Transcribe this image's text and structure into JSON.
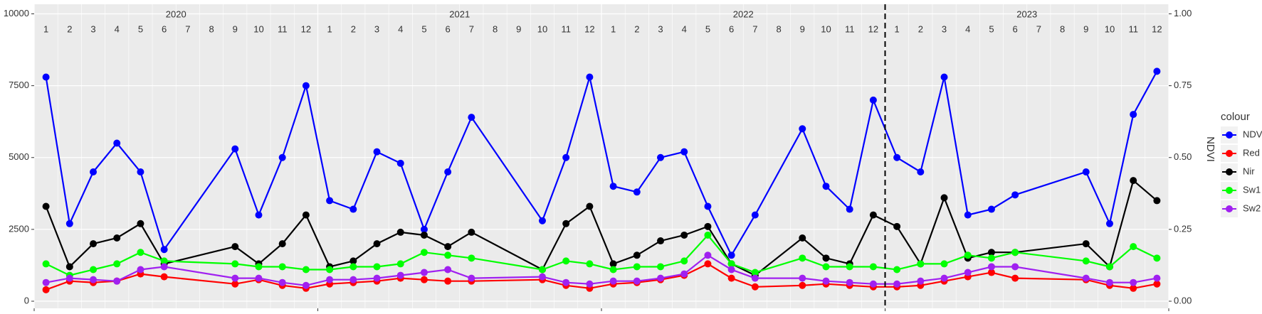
{
  "chart_data": {
    "type": "line",
    "y_label": "NDVI",
    "legend_title": "colour",
    "years": [
      "2020",
      "2021",
      "2022",
      "2023"
    ],
    "months": [
      "1",
      "2",
      "3",
      "4",
      "5",
      "6",
      "7",
      "8",
      "9",
      "10",
      "11",
      "12"
    ],
    "x": [
      "2020-01",
      "2020-02",
      "2020-03",
      "2020-04",
      "2020-05",
      "2020-06",
      "2020-09",
      "2020-10",
      "2020-11",
      "2020-12",
      "2021-01",
      "2021-02",
      "2021-03",
      "2021-04",
      "2021-05",
      "2021-06",
      "2021-07",
      "2021-10",
      "2021-11",
      "2021-12",
      "2022-01",
      "2022-02",
      "2022-03",
      "2022-04",
      "2022-05",
      "2022-06",
      "2022-07",
      "2022-09",
      "2022-10",
      "2022-11",
      "2022-12",
      "2023-01",
      "2023-02",
      "2023-03",
      "2023-04",
      "2023-05",
      "2023-06",
      "2023-09",
      "2023-10",
      "2023-11",
      "2023-12"
    ],
    "xlim": [
      "2020-01",
      "2023-12"
    ],
    "vline": "2023-01",
    "ylim": [
      0,
      10000
    ],
    "yticks": [
      0,
      2500,
      5000,
      7500,
      10000
    ],
    "y2lim": [
      0,
      1
    ],
    "y2ticks": [
      {
        "value": 0,
        "label": "0.00"
      },
      {
        "value": 0.25,
        "label": "0.25"
      },
      {
        "value": 0.5,
        "label": "0.50"
      },
      {
        "value": 0.75,
        "label": "0.75"
      },
      {
        "value": 1,
        "label": "1.00"
      }
    ],
    "grid": true,
    "series": [
      {
        "name": "NDVI",
        "color": "#0000ff",
        "axis": "y2",
        "values": [
          0.78,
          0.27,
          0.45,
          0.55,
          0.45,
          0.18,
          0.53,
          0.3,
          0.5,
          0.75,
          0.35,
          0.32,
          0.52,
          0.48,
          0.25,
          0.45,
          0.64,
          0.28,
          0.5,
          0.78,
          0.4,
          0.38,
          0.5,
          0.52,
          0.33,
          0.16,
          0.3,
          0.6,
          0.4,
          0.32,
          0.7,
          0.5,
          0.45,
          0.78,
          0.3,
          0.32,
          0.37,
          0.45,
          0.27,
          0.65,
          0.8
        ]
      },
      {
        "name": "Red",
        "color": "#ff0000",
        "values": [
          400,
          700,
          650,
          700,
          950,
          850,
          600,
          750,
          550,
          450,
          600,
          650,
          700,
          800,
          750,
          700,
          700,
          750,
          550,
          450,
          600,
          650,
          750,
          900,
          1300,
          800,
          500,
          550,
          600,
          550,
          500,
          500,
          550,
          700,
          850,
          1000,
          800,
          750,
          550,
          450,
          600
        ]
      },
      {
        "name": "Nir",
        "color": "#000000",
        "values": [
          3300,
          1200,
          2000,
          2200,
          2700,
          1300,
          1900,
          1300,
          2000,
          3000,
          1200,
          1400,
          2000,
          2400,
          2300,
          1900,
          2400,
          1100,
          2700,
          3300,
          1300,
          1600,
          2100,
          2300,
          2600,
          1300,
          900,
          2200,
          1500,
          1300,
          3000,
          2600,
          1300,
          3600,
          1500,
          1700,
          1700,
          2000,
          1200,
          4200,
          3500
        ]
      },
      {
        "name": "Sw1",
        "color": "#00ff00",
        "values": [
          1300,
          900,
          1100,
          1300,
          1700,
          1400,
          1300,
          1200,
          1200,
          1100,
          1100,
          1200,
          1200,
          1300,
          1700,
          1600,
          1500,
          1100,
          1400,
          1300,
          1100,
          1200,
          1200,
          1400,
          2300,
          1300,
          1000,
          1500,
          1200,
          1200,
          1200,
          1100,
          1300,
          1300,
          1600,
          1500,
          1700,
          1400,
          1200,
          1900,
          1500
        ]
      },
      {
        "name": "Sw2",
        "color": "#a020f0",
        "values": [
          650,
          800,
          750,
          700,
          1100,
          1200,
          800,
          800,
          650,
          550,
          750,
          750,
          800,
          900,
          1000,
          1100,
          800,
          850,
          650,
          600,
          700,
          700,
          800,
          950,
          1600,
          1100,
          800,
          800,
          700,
          650,
          600,
          600,
          700,
          800,
          1000,
          1200,
          1200,
          800,
          650,
          650,
          800
        ]
      }
    ]
  }
}
